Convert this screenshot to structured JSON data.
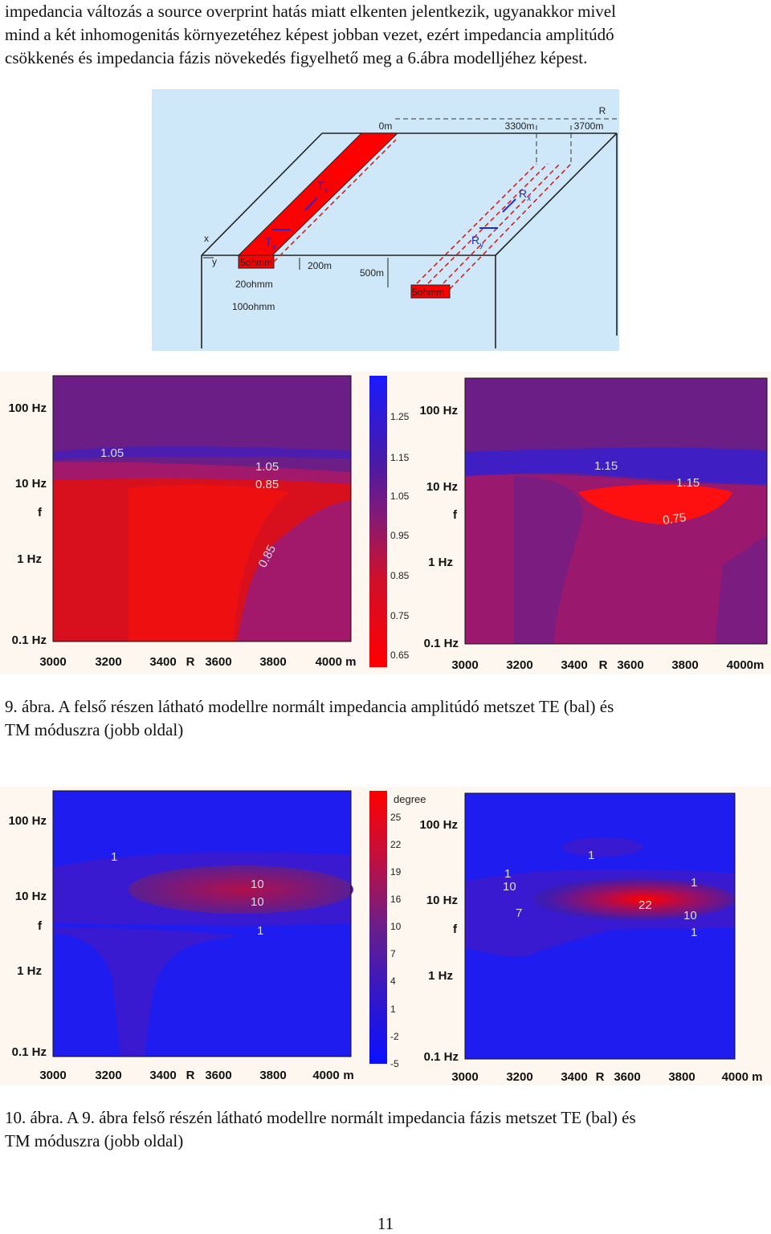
{
  "intro_text": {
    "line1": "impedancia változás   a source overprint hatás miatt elkenten jelentkezik, ugyanakkor mivel",
    "line2": "mind a két inhomogenitás környezetéhez képest jobban vezet, ezért impedancia amplitúdó",
    "line3": "csökkenés és impedancia fázis növekedés figyelhető meg a 6.ábra modelljéhez képest."
  },
  "model_figure": {
    "labels": {
      "r_top": "R",
      "m0": "0m",
      "m3300": "3300m",
      "m3700": "3700m",
      "tx": "T",
      "tx_sub": "x",
      "rx": "R",
      "rx_sub": "x",
      "ty": "T",
      "ty_sub": "y",
      "ry": "R",
      "ry_sub": "y",
      "axis_x": "x",
      "axis_y": "y",
      "block5_left": "5ohmm",
      "block5_right": "5ohmm",
      "d200": "200m",
      "d500": "500m",
      "layer20": "20ohmm",
      "layer100": "100ohmm"
    },
    "colors": {
      "background": "#cfe8f9",
      "block": "#ff0000",
      "outline": "#222222",
      "dash": "#d42020",
      "marker": "#1f2bd0"
    }
  },
  "figure9": {
    "caption_line1": "9. ábra. A felső részen látható modellre normált impedancia amplitúdó metszet TE (bal) és",
    "caption_line2": "TM móduszra (jobb oldal)",
    "left_panel": {
      "y_ticks": [
        "100 Hz",
        "10 Hz",
        "f",
        "1 Hz",
        "0.1 Hz"
      ],
      "x_ticks": [
        "3000",
        "3200",
        "3400",
        "R",
        "3600",
        "3800",
        "4000 m"
      ],
      "contour_labels": [
        "1.05",
        "1.05",
        "0.85",
        "0.85"
      ]
    },
    "colorbar": {
      "ticks": [
        "1.25",
        "1.15",
        "1.05",
        "0.95",
        "0.85",
        "0.75",
        "0.65"
      ]
    },
    "right_panel": {
      "y_ticks": [
        "100 Hz",
        "10 Hz",
        "f",
        "1 Hz",
        "0.1 Hz"
      ],
      "x_ticks": [
        "3000",
        "3200",
        "3400",
        "R",
        "3600",
        "3800",
        "4000m"
      ],
      "contour_labels": [
        "1.15",
        "1.15",
        "0.75"
      ]
    }
  },
  "figure10": {
    "caption_line1": "10. ábra. A 9. ábra felső részén látható modellre normált impedancia fázis metszet TE (bal) és",
    "caption_line2": "TM móduszra (jobb oldal)",
    "left_panel": {
      "y_ticks": [
        "100 Hz",
        "10 Hz",
        "f",
        "1 Hz",
        "0.1 Hz"
      ],
      "x_ticks": [
        "3000",
        "3200",
        "3400",
        "R",
        "3600",
        "3800",
        "4000",
        "m"
      ],
      "contour_labels": [
        "1",
        "10",
        "10",
        "1"
      ]
    },
    "colorbar": {
      "unit": "degree",
      "ticks": [
        "25",
        "22",
        "19",
        "16",
        "10",
        "7",
        "4",
        "1",
        "-2",
        "-5"
      ]
    },
    "right_panel": {
      "y_ticks": [
        "100 Hz",
        "10 Hz",
        "f",
        "1 Hz",
        "0.1 Hz"
      ],
      "x_ticks": [
        "3000",
        "3200",
        "3400",
        "R",
        "3600",
        "3800",
        "4000 m"
      ],
      "contour_labels": [
        "1",
        "1",
        "10",
        "7",
        "22",
        "1",
        "10",
        "1"
      ]
    }
  },
  "page_number": "11"
}
